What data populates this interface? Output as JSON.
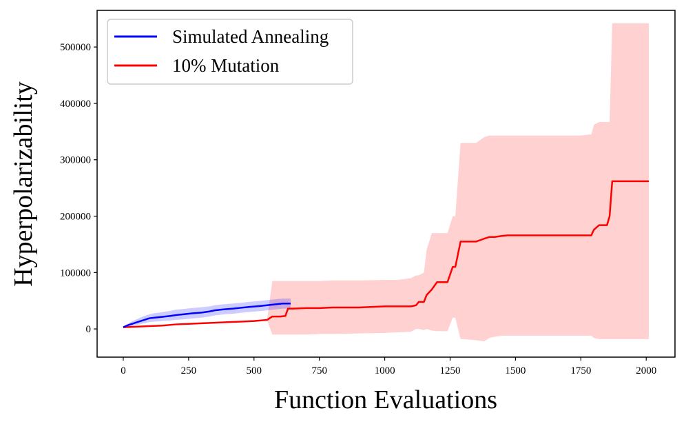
{
  "chart_data": {
    "type": "line",
    "title": "",
    "xlabel": "Function Evaluations",
    "ylabel": "Hyperpolarizability",
    "xlim": [
      -100,
      2110
    ],
    "ylim": [
      -50000,
      565000
    ],
    "xticks": [
      0,
      250,
      500,
      750,
      1000,
      1250,
      1500,
      1750,
      2000
    ],
    "yticks": [
      0,
      100000,
      200000,
      300000,
      400000,
      500000
    ],
    "xtick_labels": [
      "0",
      "250",
      "500",
      "750",
      "1000",
      "1250",
      "1500",
      "1750",
      "2000"
    ],
    "ytick_labels": [
      "0",
      "100000",
      "200000",
      "300000",
      "400000",
      "500000"
    ],
    "grid": false,
    "legend_position": "top-left",
    "series": [
      {
        "name": "Simulated Annealing",
        "color": "#0000ff",
        "band_color": "#0000ff",
        "x": [
          0,
          20,
          40,
          60,
          80,
          100,
          120,
          150,
          180,
          200,
          230,
          260,
          300,
          330,
          350,
          380,
          420,
          450,
          480,
          520,
          550,
          580,
          610,
          640
        ],
        "y": [
          3000,
          7000,
          10000,
          13000,
          16000,
          19000,
          20000,
          21500,
          23000,
          24500,
          26000,
          27500,
          29000,
          31000,
          33000,
          34500,
          36000,
          37500,
          39000,
          40500,
          42000,
          43500,
          45000,
          45000
        ],
        "upper": [
          5000,
          10000,
          15000,
          19000,
          23000,
          26000,
          28000,
          30000,
          32000,
          34000,
          35500,
          37000,
          38500,
          40000,
          42000,
          43500,
          45000,
          46500,
          48000,
          49500,
          51000,
          52500,
          54000,
          54000
        ],
        "lower": [
          1000,
          4000,
          6000,
          8000,
          10000,
          12000,
          13000,
          14000,
          15000,
          16000,
          17000,
          18500,
          20000,
          22000,
          24000,
          25500,
          27000,
          28500,
          30000,
          31500,
          33000,
          34500,
          36000,
          36000
        ]
      },
      {
        "name": "10% Mutation",
        "color": "#ff0000",
        "band_color": "#ff9999",
        "x": [
          0,
          50,
          100,
          150,
          200,
          250,
          300,
          350,
          400,
          450,
          500,
          550,
          570,
          600,
          620,
          630,
          650,
          700,
          750,
          800,
          900,
          1000,
          1050,
          1100,
          1120,
          1130,
          1150,
          1160,
          1180,
          1200,
          1220,
          1240,
          1260,
          1270,
          1290,
          1300,
          1350,
          1380,
          1400,
          1420,
          1450,
          1470,
          1500,
          1550,
          1600,
          1650,
          1700,
          1750,
          1790,
          1800,
          1820,
          1850,
          1860,
          1870,
          1900,
          1950,
          2010
        ],
        "y": [
          3000,
          4000,
          5000,
          6000,
          8000,
          9000,
          10000,
          11000,
          12000,
          13000,
          14000,
          16000,
          22000,
          22000,
          23000,
          36000,
          36000,
          37000,
          37000,
          38000,
          38000,
          40000,
          40000,
          40000,
          42000,
          48000,
          48000,
          60000,
          70000,
          83000,
          83000,
          83000,
          110000,
          110000,
          155000,
          155000,
          155000,
          160000,
          163000,
          163000,
          165000,
          166000,
          166000,
          166000,
          166000,
          166000,
          166000,
          166000,
          166000,
          176000,
          184000,
          184000,
          200000,
          262000,
          262000,
          262000,
          262000
        ],
        "upper": [
          3000,
          4000,
          5000,
          6000,
          8000,
          9000,
          10000,
          11000,
          12000,
          13000,
          14000,
          16000,
          85000,
          85000,
          85000,
          85000,
          85000,
          85000,
          85000,
          86000,
          86000,
          87000,
          87000,
          90000,
          95000,
          95000,
          100000,
          140000,
          170000,
          170000,
          170000,
          170000,
          200000,
          200000,
          330000,
          330000,
          330000,
          340000,
          343000,
          343000,
          343000,
          343000,
          343000,
          343000,
          343000,
          343000,
          343000,
          343000,
          345000,
          362000,
          367000,
          367000,
          367000,
          542000,
          542000,
          542000,
          542000
        ],
        "lower": [
          3000,
          4000,
          5000,
          6000,
          8000,
          9000,
          10000,
          11000,
          12000,
          13000,
          14000,
          16000,
          -10000,
          -10000,
          -10000,
          -10000,
          -10000,
          -10000,
          -9000,
          -9000,
          -8000,
          -7000,
          -6000,
          -5000,
          0,
          0,
          -2000,
          0,
          -3000,
          -4000,
          -4000,
          -4000,
          20000,
          20000,
          -18000,
          -18000,
          -20000,
          -22000,
          -16000,
          -14000,
          -12000,
          -12000,
          -12000,
          -12000,
          -12000,
          -12000,
          -12000,
          -12000,
          -12000,
          -16000,
          -18000,
          -18000,
          -18000,
          -18000,
          -18000,
          -18000,
          -18000
        ]
      }
    ]
  }
}
